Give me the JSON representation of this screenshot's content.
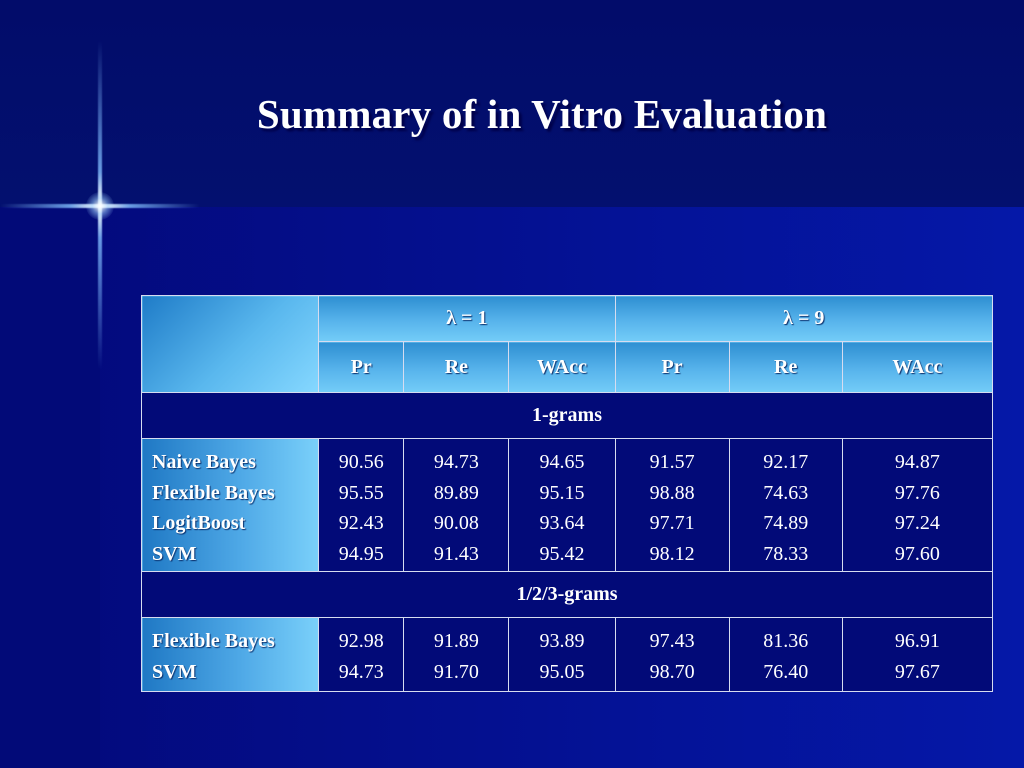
{
  "slide": {
    "title": "Summary of in Vitro Evaluation"
  },
  "table": {
    "lambda_headers": [
      "λ = 1",
      "λ = 9"
    ],
    "metric_headers": [
      "Pr",
      "Re",
      "WAcc",
      "Pr",
      "Re",
      "WAcc"
    ],
    "sections": [
      {
        "title": "1-grams",
        "labels": [
          "Naive Bayes",
          "Flexible Bayes",
          "LogitBoost",
          "SVM"
        ],
        "columns": [
          [
            "90.56",
            "95.55",
            "92.43",
            "94.95"
          ],
          [
            "94.73",
            "89.89",
            "90.08",
            "91.43"
          ],
          [
            "94.65",
            "95.15",
            "93.64",
            "95.42"
          ],
          [
            "91.57",
            "98.88",
            "97.71",
            "98.12"
          ],
          [
            "92.17",
            "74.63",
            "74.89",
            "78.33"
          ],
          [
            "94.87",
            "97.76",
            "97.24",
            "97.60"
          ]
        ]
      },
      {
        "title": "1/2/3-grams",
        "labels": [
          "Flexible Bayes",
          "SVM"
        ],
        "columns": [
          [
            "92.98",
            "94.73"
          ],
          [
            "91.89",
            "91.70"
          ],
          [
            "93.89",
            "95.05"
          ],
          [
            "97.43",
            "98.70"
          ],
          [
            "81.36",
            "76.40"
          ],
          [
            "96.91",
            "97.67"
          ]
        ]
      }
    ]
  },
  "colors": {
    "background": "#020a78",
    "header_gradient_start": "#2e8fd2",
    "header_gradient_end": "#74cdf8",
    "text": "#ffffff"
  }
}
